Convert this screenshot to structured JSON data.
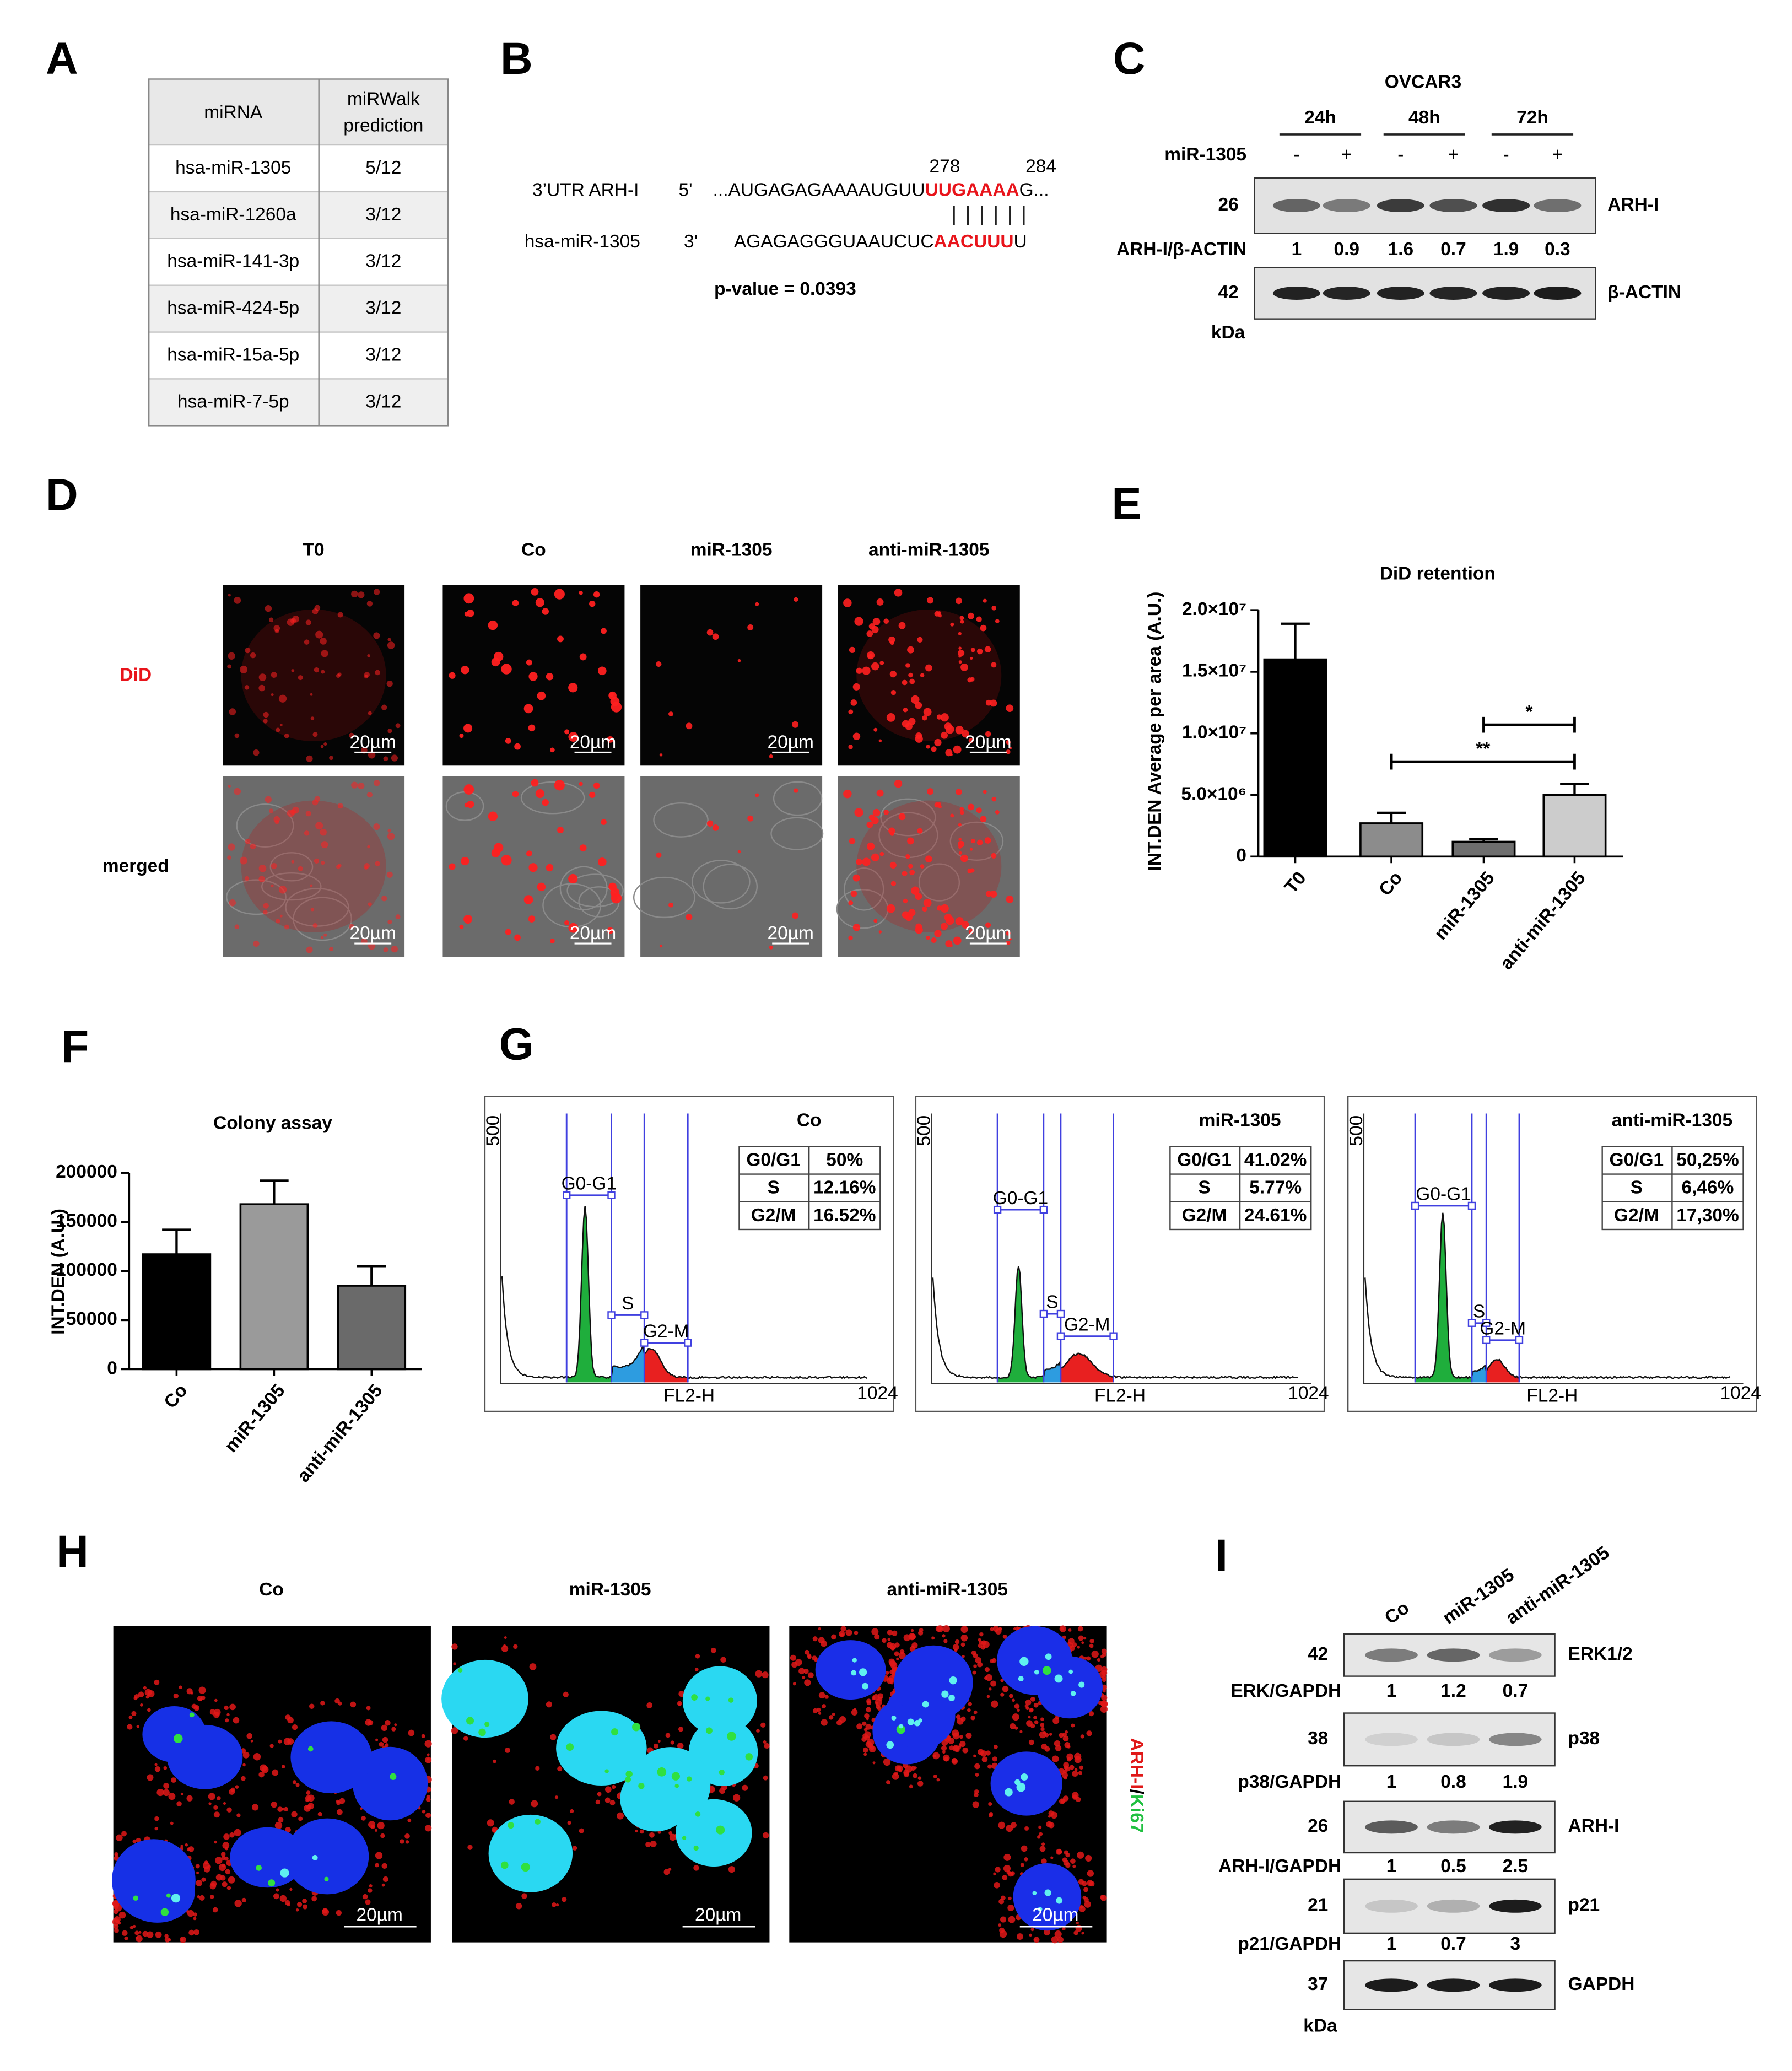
{
  "panel_a": {
    "letter": "A",
    "header": [
      "miRNA",
      [
        "miRWalk",
        "prediction"
      ]
    ],
    "rows": [
      [
        "hsa-miR-1305",
        "5/12"
      ],
      [
        "hsa-miR-1260a",
        "3/12"
      ],
      [
        "hsa-miR-141-3p",
        "3/12"
      ],
      [
        "hsa-miR-424-5p",
        "3/12"
      ],
      [
        "hsa-miR-15a-5p",
        "3/12"
      ],
      [
        "hsa-miR-7-5p",
        "3/12"
      ]
    ]
  },
  "panel_b": {
    "letter": "B",
    "utr_label": "3’UTR ARH-I",
    "utr_end": "5'",
    "utr_seq": [
      "...AUGAGAGAAAAUGUU",
      "UUGAAAA",
      "G..."
    ],
    "positions": [
      278,
      284
    ],
    "mirna_label": "hsa-miR-1305",
    "mirna_end": "3'",
    "mirna_seq": [
      "AGAGAGGGUAAUCUC",
      "AACUUU",
      "U"
    ],
    "p_value": "p-value = 0.0393"
  },
  "panel_c": {
    "letter": "C",
    "cell_line": "OVCAR3",
    "times": [
      "24h",
      "48h",
      "72h"
    ],
    "treatment_label": "miR-1305",
    "treatment": [
      "-",
      "+",
      "-",
      "+",
      "-",
      "+"
    ],
    "blots": [
      {
        "kda": 26,
        "protein": "ARH-I"
      },
      {
        "kda": 42,
        "protein": "β-ACTIN"
      }
    ],
    "ratio_label": "ARH-I/β-ACTIN",
    "ratios": [
      1,
      0.9,
      1.6,
      0.7,
      1.9,
      0.3
    ],
    "unit": "kDa"
  },
  "panel_d": {
    "letter": "D",
    "conditions": [
      "T0",
      "Co",
      "miR-1305",
      "anti-miR-1305"
    ],
    "channels": [
      "DiD",
      "merged"
    ],
    "scale_bar": "20µm"
  },
  "panel_g": {
    "letter": "G",
    "plots": [
      {
        "title": "Co",
        "phases": [
          [
            "G0/G1",
            "50%"
          ],
          [
            "S",
            "12.16%"
          ],
          [
            "G2/M",
            "16.52%"
          ]
        ]
      },
      {
        "title": "miR-1305",
        "phases": [
          [
            "G0/G1",
            "41.02%"
          ],
          [
            "S",
            "5.77%"
          ],
          [
            "G2/M",
            "24.61%"
          ]
        ]
      },
      {
        "title": "anti-miR-1305",
        "phases": [
          [
            "G0/G1",
            "50,25%"
          ],
          [
            "S",
            "6,46%"
          ],
          [
            "G2/M",
            "17,30%"
          ]
        ]
      }
    ],
    "gates": [
      "G0-G1",
      "S",
      "G2-M"
    ],
    "x_label": "FL2-H",
    "y_max": 500,
    "x_max": 1024
  },
  "panel_h": {
    "letter": "H",
    "conditions": [
      "Co",
      "miR-1305",
      "anti-miR-1305"
    ],
    "stain": [
      "ARH-I",
      "/",
      "Ki67"
    ],
    "scale_bar": "20µm"
  },
  "panel_i": {
    "letter": "I",
    "conditions": [
      "Co",
      "miR-1305",
      "anti-miR-1305"
    ],
    "blots": [
      {
        "kda": 42,
        "protein": "ERK1/2",
        "ratio_label": "ERK/GAPDH",
        "ratios": [
          1,
          1.2,
          0.7
        ]
      },
      {
        "kda": 38,
        "protein": "p38",
        "ratio_label": "p38/GAPDH",
        "ratios": [
          1,
          0.8,
          1.9
        ]
      },
      {
        "kda": 26,
        "protein": "ARH-I",
        "ratio_label": "ARH-I/GAPDH",
        "ratios": [
          1,
          0.5,
          2.5
        ]
      },
      {
        "kda": 21,
        "protein": "p21",
        "ratio_label": "p21/GAPDH",
        "ratios": [
          1,
          0.7,
          3
        ]
      },
      {
        "kda": 37,
        "protein": "GAPDH"
      }
    ],
    "unit": "kDa"
  },
  "chart_data": [
    {
      "type": "bar",
      "panel_label": "E",
      "title": "DiD retention",
      "y_label": "INT.DEN Average per area (A.U.)",
      "categories": [
        "T0",
        "Co",
        "miR-1305",
        "anti-miR-1305"
      ],
      "values": [
        16000000,
        2700000,
        1200000,
        5000000
      ],
      "errors": [
        2900000,
        850000,
        200000,
        900000
      ],
      "colors": [
        "#000000",
        "#8c8c8c",
        "#6e6e6e",
        "#cccccc"
      ],
      "ylim": [
        0,
        20000000
      ],
      "yticks": [
        0,
        {
          "value": 5000000,
          "label": "5.0×10⁶"
        },
        {
          "value": 10000000,
          "label": "1.0×10⁷"
        },
        {
          "value": 15000000,
          "label": "1.5×10⁷"
        },
        {
          "value": 20000000,
          "label": "2.0×10⁷"
        }
      ],
      "annotations": [
        "*",
        "**"
      ]
    },
    {
      "type": "bar",
      "panel_label": "F",
      "title": "Colony assay",
      "y_label": "INT.DEN (A.U.)",
      "categories": [
        "Co",
        "miR-1305",
        "anti-miR-1305"
      ],
      "values": [
        117000,
        168000,
        85000
      ],
      "errors": [
        25000,
        24000,
        20000
      ],
      "colors": [
        "#000000",
        "#9a9a9a",
        "#6a6a6a"
      ],
      "ylim": [
        0,
        200000
      ],
      "yticks": [
        0,
        50000,
        100000,
        150000,
        200000
      ]
    }
  ]
}
